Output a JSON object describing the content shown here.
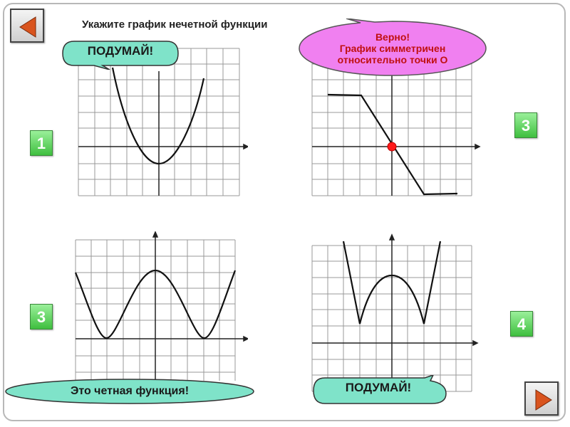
{
  "title": "Укажите график нечетной функции",
  "nav": {
    "prev_icon": "arrow-left-icon",
    "next_icon": "arrow-right-icon",
    "accent": "#d9541e"
  },
  "labels": {
    "g1": "1",
    "g2": "3",
    "g3": "3",
    "g4": "4"
  },
  "feedback": {
    "think_1": "ПОДУМАЙ!",
    "correct_line1": "Верно!",
    "correct_line2": "График симметричен",
    "correct_line3": "относительно точки О",
    "even_function": "Это четная функция!",
    "think_4": "ПОДУМАЙ!"
  },
  "colors": {
    "bubble_green": "#7fe3c9",
    "bubble_pink": "#f080f0",
    "origin_point": "#ff1a1a",
    "label_green": "#3fbf3f"
  }
}
